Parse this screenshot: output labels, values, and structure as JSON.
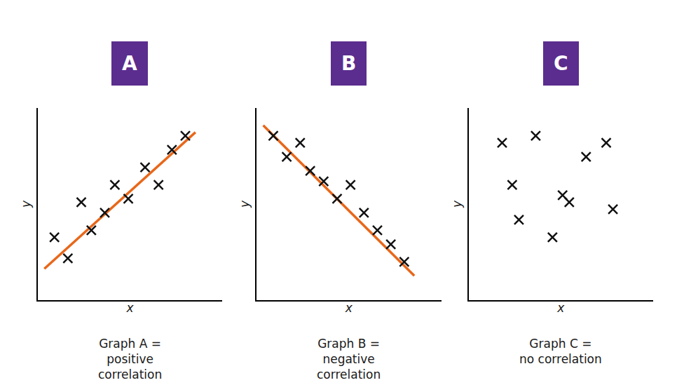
{
  "chart_data": [
    {
      "type": "scatter",
      "title": "A",
      "color": "#5b2d8e",
      "annotations": [
        "Graph A =\npositive\ncorrelation"
      ],
      "xlabel": "x",
      "ylabel": "y",
      "xlim": [
        0,
        5.5
      ],
      "ylim": [
        0,
        5.5
      ],
      "grid": false,
      "tick_labels": false,
      "series": [
        {
          "type": "line",
          "color": "#e8671a",
          "line_style": "solid",
          "x": [
            0.2,
            4.7
          ],
          "values": [
            0.9,
            4.8
          ]
        },
        {
          "type": "scatter",
          "color": "#111111",
          "marker": "x",
          "x": [
            0.5,
            0.9,
            1.3,
            1.6,
            2.0,
            2.3,
            2.7,
            3.2,
            3.6,
            4.0,
            4.4
          ],
          "values": [
            1.8,
            1.2,
            2.8,
            2.0,
            2.5,
            3.3,
            2.9,
            3.8,
            3.3,
            4.3,
            4.7
          ]
        }
      ]
    },
    {
      "type": "scatter",
      "title": "B",
      "color": "#5b2d8e",
      "annotations": [
        "Graph B =\nnegative\ncorrelation"
      ],
      "xlabel": "x",
      "ylabel": "y",
      "xlim": [
        0,
        5.5
      ],
      "ylim": [
        0,
        5.5
      ],
      "grid": false,
      "tick_labels": false,
      "series": [
        {
          "type": "line",
          "color": "#e8671a",
          "line_style": "solid",
          "x": [
            0.2,
            4.7
          ],
          "values": [
            5.0,
            0.7
          ]
        },
        {
          "type": "scatter",
          "color": "#111111",
          "marker": "x",
          "x": [
            0.5,
            0.9,
            1.3,
            1.6,
            2.0,
            2.4,
            2.8,
            3.2,
            3.6,
            4.0,
            4.4
          ],
          "values": [
            4.7,
            4.1,
            4.5,
            3.7,
            3.4,
            2.9,
            3.3,
            2.5,
            2.0,
            1.6,
            1.1
          ]
        }
      ]
    },
    {
      "type": "scatter",
      "title": "C",
      "color": "#5b2d8e",
      "annotations": [
        "Graph C =\nno correlation"
      ],
      "xlabel": "x",
      "ylabel": "y",
      "xlim": [
        0,
        5.5
      ],
      "ylim": [
        0,
        5.5
      ],
      "grid": false,
      "tick_labels": false,
      "series": [
        {
          "type": "scatter",
          "color": "#111111",
          "marker": "x",
          "x": [
            1.0,
            2.0,
            1.3,
            2.8,
            3.5,
            4.1,
            1.5,
            3.0,
            2.5,
            4.3
          ],
          "values": [
            4.5,
            4.7,
            3.3,
            3.0,
            4.1,
            4.5,
            2.3,
            2.8,
            1.8,
            2.6
          ]
        }
      ]
    }
  ]
}
